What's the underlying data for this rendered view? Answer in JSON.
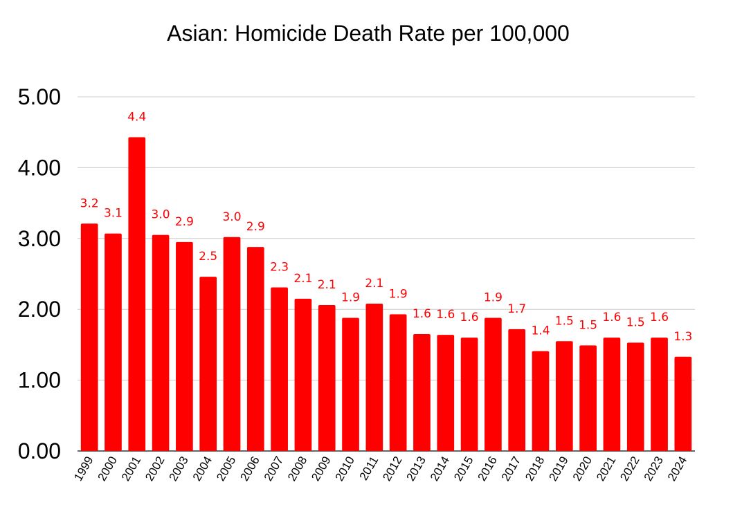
{
  "chart_data": {
    "type": "bar",
    "title": "Asian: Homicide Death Rate per 100,000",
    "xlabel": "",
    "ylabel": "",
    "ylim": [
      0,
      5
    ],
    "yticks": [
      "0.00",
      "1.00",
      "2.00",
      "3.00",
      "4.00",
      "5.00"
    ],
    "grid": true,
    "bar_color": "#ff0000",
    "label_color": "#ff0000",
    "categories": [
      "1999",
      "2000",
      "2001",
      "2002",
      "2003",
      "2004",
      "2005",
      "2006",
      "2007",
      "2008",
      "2009",
      "2010",
      "2011",
      "2012",
      "2013",
      "2014",
      "2015",
      "2016",
      "2017",
      "2018",
      "2019",
      "2020",
      "2021",
      "2022",
      "2023",
      "2024"
    ],
    "values": [
      3.21,
      3.07,
      4.43,
      3.05,
      2.95,
      2.46,
      3.02,
      2.88,
      2.31,
      2.15,
      2.06,
      1.88,
      2.08,
      1.93,
      1.65,
      1.64,
      1.6,
      1.88,
      1.72,
      1.41,
      1.55,
      1.49,
      1.6,
      1.53,
      1.6,
      1.33
    ],
    "data_labels": [
      "3.2",
      "3.1",
      "4.4",
      "3.0",
      "2.9",
      "2.5",
      "3.0",
      "2.9",
      "2.3",
      "2.1",
      "2.1",
      "1.9",
      "2.1",
      "1.9",
      "1.6",
      "1.6",
      "1.6",
      "1.9",
      "1.7",
      "1.4",
      "1.5",
      "1.5",
      "1.6",
      "1.5",
      "1.6",
      "1.3"
    ]
  }
}
